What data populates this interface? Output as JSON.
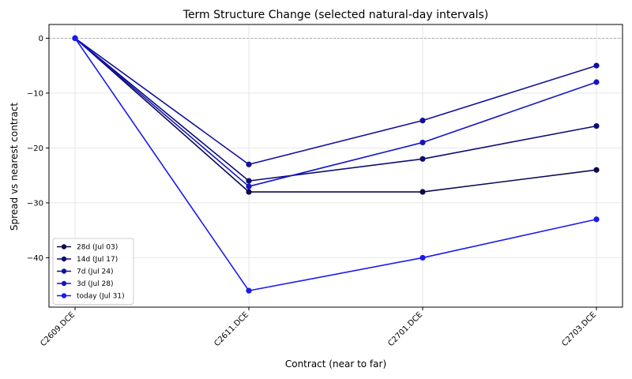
{
  "chart_data": {
    "type": "line",
    "title": "Term Structure Change (selected natural-day intervals)",
    "xlabel": "Contract (near to far)",
    "ylabel": "Spread vs nearest contract",
    "categories": [
      "C2609.DCE",
      "C2611.DCE",
      "C2701.DCE",
      "C2703.DCE"
    ],
    "ylim": [
      -49,
      2.5
    ],
    "yticks": [
      0,
      -10,
      -20,
      -30,
      -40
    ],
    "ytick_labels": [
      "0",
      "−10",
      "−20",
      "−30",
      "−40"
    ],
    "grid": true,
    "reference_line": 0,
    "legend_position": "lower-left",
    "series": [
      {
        "name": "28d (Jul 03)",
        "color": "#0b0b4f",
        "values": [
          0,
          -28,
          -28,
          -24
        ]
      },
      {
        "name": "14d (Jul 17)",
        "color": "#0d0d75",
        "values": [
          0,
          -26,
          -22,
          -16
        ]
      },
      {
        "name": "7d (Jul 24)",
        "color": "#10109b",
        "values": [
          0,
          -23,
          -15,
          -5
        ]
      },
      {
        "name": "3d (Jul 28)",
        "color": "#1414c4",
        "values": [
          0,
          -27,
          -19,
          -8
        ]
      },
      {
        "name": "today (Jul 31)",
        "color": "#1a1aec",
        "values": [
          0,
          -46,
          -40,
          -33
        ]
      }
    ]
  }
}
